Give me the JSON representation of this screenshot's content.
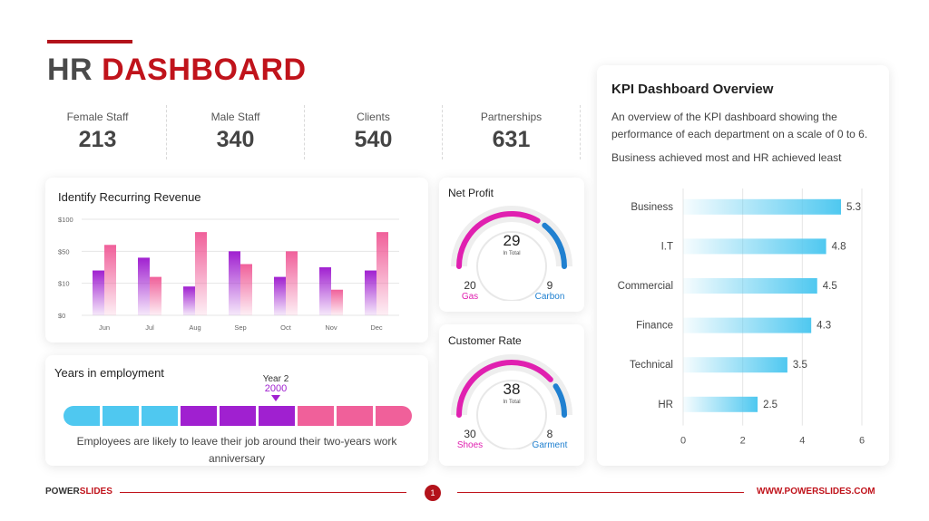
{
  "header": {
    "title_part1": "HR",
    "title_part2": "DASHBOARD"
  },
  "stats": [
    {
      "label": "Female Staff",
      "value": "213"
    },
    {
      "label": "Male Staff",
      "value": "340"
    },
    {
      "label": "Clients",
      "value": "540"
    },
    {
      "label": "Partnerships",
      "value": "631"
    }
  ],
  "revenue": {
    "title": "Identify Recurring Revenue",
    "chart_data": {
      "type": "bar",
      "categories": [
        "Jun",
        "Jul",
        "Aug",
        "Sep",
        "Oct",
        "Nov",
        "Dec"
      ],
      "y_tick_labels": [
        "$0",
        "$10",
        "$50",
        "$100"
      ],
      "series": [
        {
          "values": [
            1.4,
            1.8,
            0.9,
            2.0,
            1.2,
            1.5,
            1.4
          ],
          "color": "#a020d0"
        },
        {
          "values": [
            2.2,
            1.2,
            2.6,
            1.6,
            2.0,
            0.8,
            2.6
          ],
          "color": "#f0609a"
        }
      ],
      "ylim": [
        0,
        3
      ]
    }
  },
  "years": {
    "title": "Years in employment",
    "marker_label": "Year 2",
    "marker_year": "2000",
    "segment_colors": [
      "#4fc8f0",
      "#4fc8f0",
      "#4fc8f0",
      "#a020d0",
      "#a020d0",
      "#a020d0",
      "#f0609a",
      "#f0609a",
      "#f0609a"
    ],
    "text": "Employees are likely to leave their job around their two-years work anniversary"
  },
  "net_profit": {
    "title": "Net Profit",
    "center_value": "29",
    "center_sub": "In Total",
    "left_value": "20",
    "left_label": "Gas",
    "right_value": "9",
    "right_label": "Carbon",
    "fraction": 0.69
  },
  "customer_rate": {
    "title": "Customer Rate",
    "center_value": "38",
    "center_sub": "In Total",
    "left_value": "30",
    "left_label": "Shoes",
    "right_value": "8",
    "right_label": "Garment",
    "fraction": 0.79
  },
  "kpi": {
    "title": "KPI Dashboard Overview",
    "description": "An overview of the KPI dashboard showing the performance of each department on a scale of 0 to 6.",
    "subtitle": "Business achieved most and HR achieved least",
    "chart_data": {
      "type": "bar",
      "orientation": "horizontal",
      "categories": [
        "Business",
        "I.T",
        "Commercial",
        "Finance",
        "Technical",
        "HR"
      ],
      "values": [
        5.3,
        4.8,
        4.5,
        4.3,
        3.5,
        2.5
      ],
      "x_ticks": [
        "0",
        "2",
        "4",
        "6"
      ],
      "xlim": [
        0,
        6
      ],
      "color": "#4fc8f0"
    }
  },
  "footer": {
    "brand_part1": "POWER",
    "brand_part2": "SLIDES",
    "page": "1",
    "url": "WWW.POWERSLIDES.COM"
  },
  "colors": {
    "accent_red": "#c0131b",
    "pink": "#e020b0",
    "blue": "#2080d0"
  }
}
